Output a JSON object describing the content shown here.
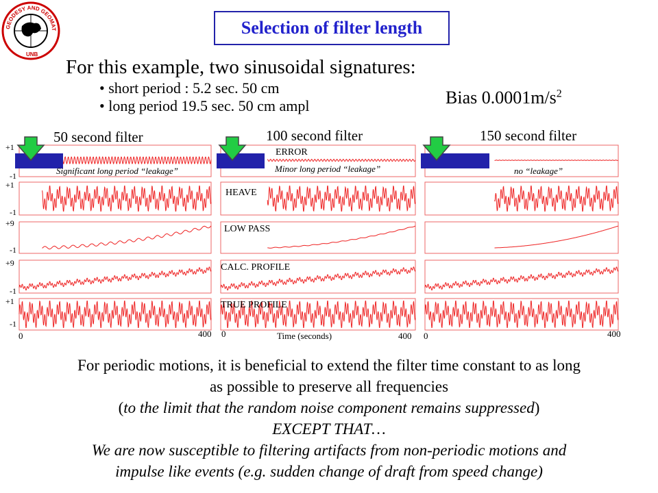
{
  "logo": {
    "text_top": "GEODESY AND GEOMATICS ENGINEERING",
    "text_bottom": "UNB"
  },
  "title": "Selection of filter length",
  "intro": "For this example, two sinusoidal signatures:",
  "bullets": [
    "short period : 5.2 sec. 50 cm",
    "long period 19.5 sec. 50 cm ampl"
  ],
  "bias": {
    "text": "Bias 0.0001m/s",
    "exponent": "2"
  },
  "filters": [
    {
      "label": "50 second filter",
      "leakage": "Significant long period “leakage”"
    },
    {
      "label": "100 second filter",
      "leakage": "Minor long period “leakage”"
    },
    {
      "label": "150 second filter",
      "leakage": "no “leakage”"
    }
  ],
  "row_labels": [
    "ERROR",
    "HEAVE",
    "LOW PASS",
    "CALC. PROFILE",
    "TRUE PROFILE"
  ],
  "y_ticks": [
    {
      "top": "+1",
      "bottom": "-1"
    },
    {
      "top": "+1",
      "bottom": "-1"
    },
    {
      "top": "+9",
      "bottom": "-1"
    },
    {
      "top": "+9",
      "bottom": "-1"
    },
    {
      "top": "+1",
      "bottom": "-1"
    }
  ],
  "x_axis": {
    "min": "0",
    "max": "400",
    "label": "Time (seconds)"
  },
  "conclusion": {
    "line1": "For periodic motions, it is beneficial to extend the filter time constant to as long",
    "line2": "as possible to preserve all frequencies",
    "line3_open": "(",
    "line3_italic": "to the limit that the random noise component remains suppressed",
    "line3_close": ")",
    "line4": "EXCEPT THAT…",
    "line5": "We are now susceptible to filtering artifacts from non-periodic motions and",
    "line6": "impulse like events (e.g. sudden change of draft from speed change)"
  },
  "colors": {
    "title": "#2222cc",
    "signal": "#ee2222",
    "panel_border": "#ee6666",
    "filter_box": "#2222aa",
    "arrow": "#22cc44"
  }
}
